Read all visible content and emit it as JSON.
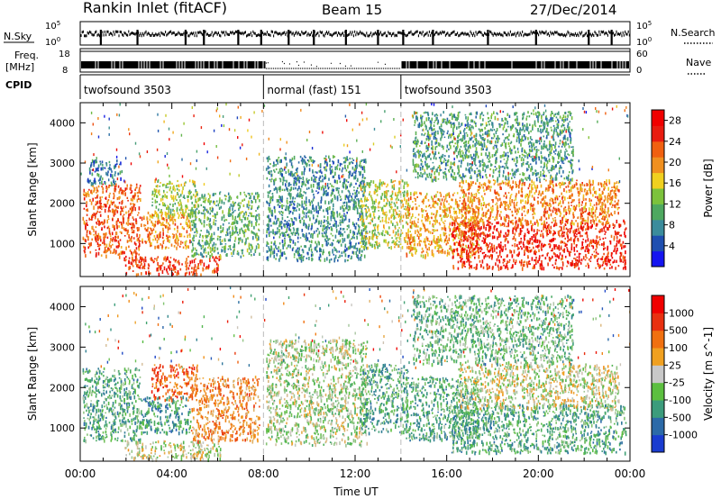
{
  "header": {
    "station": "Rankin Inlet (fitACF)",
    "beam": "Beam 15",
    "date": "27/Dec/2014"
  },
  "top_panels": {
    "nsky_label": "N.Sky",
    "nsearch_label": "N.Search",
    "nsky_ticks": [
      "10^5",
      "10^0"
    ],
    "nsearch_ticks": [
      "10^5",
      "10^0"
    ],
    "freq_label": "Freq.",
    "freq_unit": "[MHz]",
    "freq_ticks": [
      "18",
      "8"
    ],
    "nave_label": "Nave",
    "nave_ticks": [
      "60",
      "0"
    ],
    "cpid_label": "CPID",
    "cpid_segments": [
      {
        "label": "twofsound 3503",
        "start_hour": 0,
        "end_hour": 8
      },
      {
        "label": "normal (fast) 151",
        "start_hour": 8,
        "end_hour": 14
      },
      {
        "label": "twofsound 3503",
        "start_hour": 14,
        "end_hour": 24
      }
    ]
  },
  "chart_data": [
    {
      "type": "heatmap",
      "name": "power",
      "ylabel": "Slant Range [km]",
      "xlabel": "Time UT",
      "x_ticks": [
        "00:00",
        "04:00",
        "08:00",
        "12:00",
        "16:00",
        "20:00",
        "00:00"
      ],
      "y_ticks": [
        1000,
        2000,
        3000,
        4000
      ],
      "xlim_hours": [
        0,
        24
      ],
      "ylim_km": [
        180,
        4500
      ],
      "colorbar": {
        "label": "Power [dB]",
        "ticks": [
          4,
          8,
          12,
          16,
          20,
          24,
          28
        ],
        "range": [
          0,
          30
        ],
        "colors": [
          "#1515f0",
          "#1f4fb0",
          "#3b8c9c",
          "#4ea860",
          "#7cc23c",
          "#f0d020",
          "#f09020",
          "#f06010",
          "#e81c10",
          "#f00000"
        ]
      },
      "regions": [
        {
          "t0": 0.1,
          "t1": 2.6,
          "r0": 700,
          "r1": 2500,
          "level": 0.78
        },
        {
          "t0": 0.3,
          "t1": 1.8,
          "r0": 2500,
          "r1": 3100,
          "level": 0.2
        },
        {
          "t0": 1.9,
          "t1": 6.1,
          "r0": 250,
          "r1": 700,
          "level": 0.85
        },
        {
          "t0": 2.6,
          "t1": 4.8,
          "r0": 900,
          "r1": 1800,
          "level": 0.7
        },
        {
          "t0": 3.1,
          "t1": 5.1,
          "r0": 1700,
          "r1": 2600,
          "level": 0.45
        },
        {
          "t0": 4.8,
          "t1": 7.8,
          "r0": 700,
          "r1": 2300,
          "level": 0.35
        },
        {
          "t0": 8.1,
          "t1": 12.5,
          "r0": 600,
          "r1": 3200,
          "level": 0.25
        },
        {
          "t0": 12.2,
          "t1": 14.3,
          "r0": 900,
          "r1": 2600,
          "level": 0.5
        },
        {
          "t0": 14.2,
          "t1": 17.4,
          "r0": 700,
          "r1": 2300,
          "level": 0.65
        },
        {
          "t0": 16.2,
          "t1": 23.8,
          "r0": 400,
          "r1": 1600,
          "level": 0.9
        },
        {
          "t0": 16.5,
          "t1": 23.5,
          "r0": 1500,
          "r1": 2600,
          "level": 0.7
        },
        {
          "t0": 14.5,
          "t1": 21.5,
          "r0": 2600,
          "r1": 4300,
          "level": 0.3
        }
      ]
    },
    {
      "type": "heatmap",
      "name": "velocity",
      "ylabel": "Slant Range [km]",
      "xlabel": "Time UT",
      "x_ticks": [
        "00:00",
        "04:00",
        "08:00",
        "12:00",
        "16:00",
        "20:00",
        "00:00"
      ],
      "y_ticks": [
        1000,
        2000,
        3000,
        4000
      ],
      "xlim_hours": [
        0,
        24
      ],
      "ylim_km": [
        180,
        4500
      ],
      "colorbar": {
        "label": "Velocity [m s^-1]",
        "ticks": [
          1000,
          500,
          100,
          25,
          -25,
          -100,
          -500,
          -1000
        ],
        "colors": [
          "#1a3cd0",
          "#2c6aa8",
          "#3c9c7c",
          "#5cbf40",
          "#c8c8c8",
          "#f0a020",
          "#f07010",
          "#e83010",
          "#f00000"
        ]
      },
      "regions": [
        {
          "t0": 0.1,
          "t1": 2.6,
          "r0": 700,
          "r1": 2500,
          "level": 0.3
        },
        {
          "t0": 1.9,
          "t1": 6.1,
          "r0": 250,
          "r1": 700,
          "level": 0.5
        },
        {
          "t0": 2.6,
          "t1": 4.8,
          "r0": 900,
          "r1": 1800,
          "level": 0.25
        },
        {
          "t0": 3.1,
          "t1": 5.1,
          "r0": 1700,
          "r1": 2600,
          "level": 0.8
        },
        {
          "t0": 4.8,
          "t1": 7.8,
          "r0": 700,
          "r1": 2300,
          "level": 0.7
        },
        {
          "t0": 8.1,
          "t1": 12.5,
          "r0": 600,
          "r1": 3200,
          "level": 0.45
        },
        {
          "t0": 12.2,
          "t1": 14.3,
          "r0": 900,
          "r1": 2600,
          "level": 0.3
        },
        {
          "t0": 14.2,
          "t1": 17.4,
          "r0": 700,
          "r1": 2300,
          "level": 0.3
        },
        {
          "t0": 16.2,
          "t1": 23.8,
          "r0": 400,
          "r1": 1600,
          "level": 0.3
        },
        {
          "t0": 16.5,
          "t1": 23.5,
          "r0": 1500,
          "r1": 2600,
          "level": 0.5
        },
        {
          "t0": 14.5,
          "t1": 21.5,
          "r0": 2600,
          "r1": 4300,
          "level": 0.35
        }
      ]
    }
  ]
}
